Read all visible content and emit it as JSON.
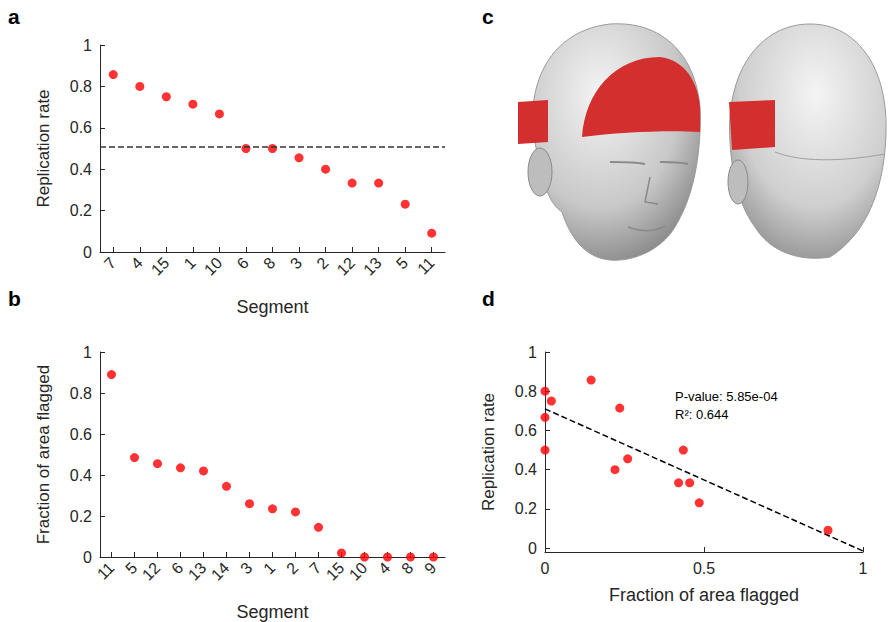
{
  "chart_data": [
    {
      "panel": "a",
      "type": "scatter",
      "categories": [
        "7",
        "4",
        "15",
        "1",
        "10",
        "6",
        "8",
        "3",
        "2",
        "12",
        "13",
        "5",
        "11"
      ],
      "values": [
        0.857,
        0.8,
        0.75,
        0.714,
        0.667,
        0.5,
        0.5,
        0.455,
        0.4,
        0.333,
        0.333,
        0.231,
        0.091
      ],
      "color": "#ff0000",
      "marker": "circle",
      "reference_line": {
        "value": 0.51,
        "line_style": "dashed",
        "color": "#333333"
      },
      "x_label": "Segment",
      "y_label": "Replication rate",
      "ylim": [
        0,
        1
      ],
      "yticks": [
        0,
        0.2,
        0.4,
        0.6,
        0.8,
        1
      ],
      "grid": false
    },
    {
      "panel": "b",
      "type": "scatter",
      "categories": [
        "11",
        "5",
        "12",
        "6",
        "13",
        "14",
        "3",
        "1",
        "2",
        "7",
        "15",
        "10",
        "4",
        "8",
        "9"
      ],
      "values": [
        0.89,
        0.485,
        0.455,
        0.435,
        0.42,
        0.345,
        0.26,
        0.235,
        0.22,
        0.145,
        0.02,
        0,
        0,
        0,
        0
      ],
      "color": "#ff0000",
      "marker": "circle",
      "x_label": "Segment",
      "y_label": "Fraction of area flagged",
      "ylim": [
        0,
        1
      ],
      "yticks": [
        0,
        0.2,
        0.4,
        0.6,
        0.8,
        1
      ],
      "grid": false
    },
    {
      "panel": "d",
      "type": "scatter",
      "x": [
        0.145,
        0,
        0.02,
        0.235,
        0,
        0.435,
        0,
        0.26,
        0.22,
        0.455,
        0.42,
        0.485,
        0.89
      ],
      "values": [
        0.857,
        0.8,
        0.75,
        0.714,
        0.667,
        0.5,
        0.5,
        0.455,
        0.4,
        0.333,
        0.333,
        0.231,
        0.091
      ],
      "color": "#ff0000",
      "marker": "circle",
      "fit": {
        "x": [
          0,
          1
        ],
        "values": [
          0.71,
          -0.015
        ],
        "line_style": "dashed",
        "color": "#000000"
      },
      "annotations": [
        "P-value: 5.85e-04",
        "R²: 0.644"
      ],
      "x_label": "Fraction of area flagged",
      "y_label": "Replication rate",
      "xlim": [
        0,
        1
      ],
      "xticks": [
        0,
        0.5,
        1
      ],
      "ylim": [
        -0.02,
        1
      ],
      "yticks": [
        0,
        0.2,
        0.4,
        0.6,
        0.8,
        1
      ],
      "grid": false
    }
  ],
  "image_panel": {
    "panel": "c"
  }
}
